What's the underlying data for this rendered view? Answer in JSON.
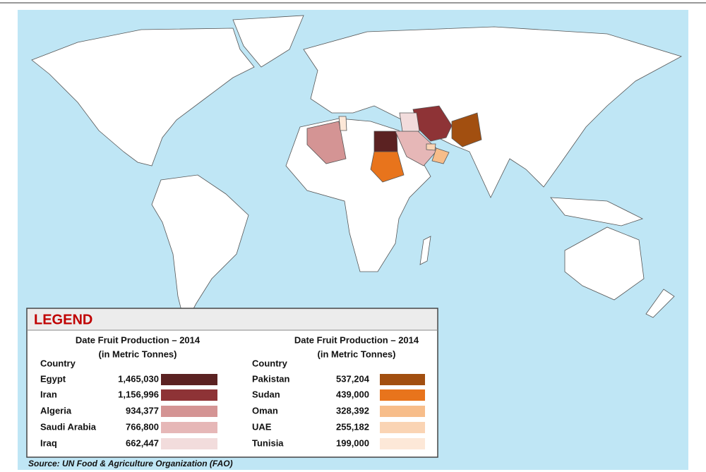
{
  "legend": {
    "title": "LEGEND",
    "columns": [
      {
        "heading": "Date Fruit Production – 2014",
        "subheading": "(in Metric Tonnes)",
        "country_label": "Country",
        "rows": [
          {
            "country": "Egypt",
            "value": 1465030,
            "label": "1,465,030",
            "color": "#5b2222"
          },
          {
            "country": "Iran",
            "value": 1156996,
            "label": "1,156,996",
            "color": "#8e3336"
          },
          {
            "country": "Algeria",
            "value": 934377,
            "label": "934,377",
            "color": "#d49494"
          },
          {
            "country": "Saudi Arabia",
            "value": 766800,
            "label": "766,800",
            "color": "#e6b7b7"
          },
          {
            "country": "Iraq",
            "value": 662447,
            "label": "662,447",
            "color": "#f2dcdc"
          }
        ]
      },
      {
        "heading": "Date Fruit Production – 2014",
        "subheading": "(in Metric Tonnes)",
        "country_label": "Country",
        "rows": [
          {
            "country": "Pakistan",
            "value": 537204,
            "label": "537,204",
            "color": "#a24f10"
          },
          {
            "country": "Sudan",
            "value": 439000,
            "label": "439,000",
            "color": "#e8741c"
          },
          {
            "country": "Oman",
            "value": 328392,
            "label": "328,392",
            "color": "#f7bd8a"
          },
          {
            "country": "UAE",
            "value": 255182,
            "label": "255,182",
            "color": "#fad4b4"
          },
          {
            "country": "Tunisia",
            "value": 199000,
            "label": "199,000",
            "color": "#fde8d8"
          }
        ]
      }
    ]
  },
  "source": "Source: UN Food & Agriculture Organization (FAO)"
}
